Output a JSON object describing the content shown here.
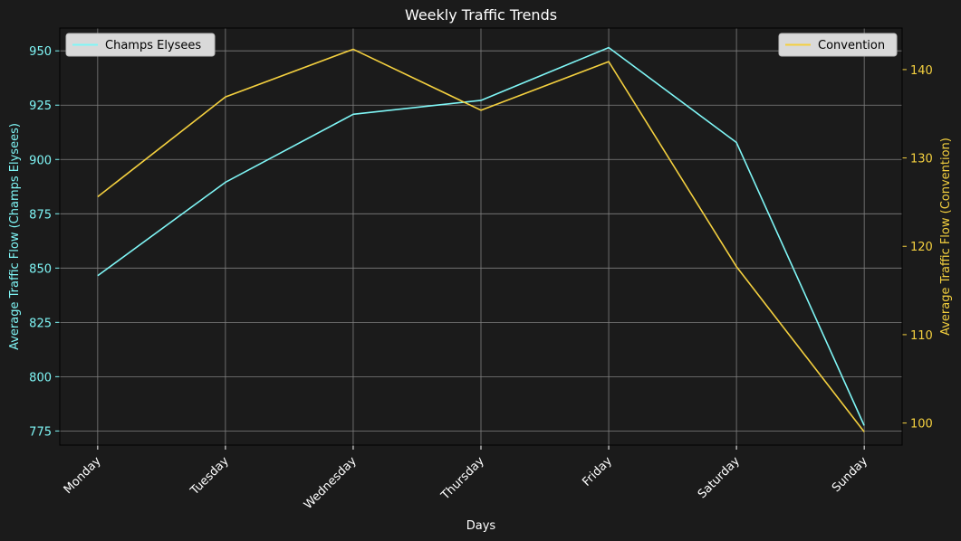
{
  "chart_data": {
    "type": "line",
    "title": "Weekly Traffic Trends",
    "xlabel": "Days",
    "ylabel_left": "Average Traffic Flow (Champs Elysees)",
    "ylabel_right": "Average Traffic Flow (Convention)",
    "categories": [
      "Monday",
      "Tuesday",
      "Wednesday",
      "Thursday",
      "Friday",
      "Saturday",
      "Sunday"
    ],
    "series": [
      {
        "name": "Champs Elysees",
        "axis": "left",
        "color": "#7ff6f6",
        "values": [
          846.5,
          889.5,
          920.8,
          927.2,
          951.5,
          907.8,
          777.5
        ]
      },
      {
        "name": "Convention",
        "axis": "right",
        "color": "#f4d03f",
        "values": [
          125.6,
          136.9,
          142.3,
          135.4,
          140.9,
          117.7,
          99.0
        ]
      }
    ],
    "ylim_left": [
      768.5,
      960.5
    ],
    "yticks_left": [
      775,
      800,
      825,
      850,
      875,
      900,
      925,
      950
    ],
    "ylim_right": [
      97.5,
      144.7
    ],
    "yticks_right": [
      100,
      110,
      120,
      130,
      140
    ],
    "grid": true,
    "legend_left_placement": "top-left",
    "legend_right_placement": "top-right",
    "background_color": "#1b1b1b",
    "text_color": "#ffffff",
    "grid_color": "#808080"
  }
}
